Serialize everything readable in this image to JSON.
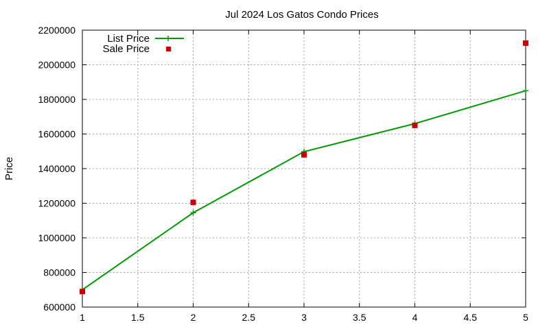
{
  "chart_data": {
    "type": "line",
    "title": "Jul 2024 Los Gatos Condo Prices",
    "xlabel": "",
    "ylabel": "Price",
    "xlim": [
      1,
      5
    ],
    "ylim": [
      600000,
      2200000
    ],
    "x_ticks": [
      1,
      1.5,
      2,
      2.5,
      3,
      3.5,
      4,
      4.5,
      5
    ],
    "y_ticks": [
      600000,
      800000,
      1000000,
      1200000,
      1400000,
      1600000,
      1800000,
      2000000,
      2200000
    ],
    "grid": true,
    "legend_position": "top-left",
    "series": [
      {
        "name": "List Price",
        "style": "line-with-plus-markers",
        "color": "#009900",
        "x": [
          1,
          2,
          3,
          4,
          5
        ],
        "values": [
          700000,
          1145000,
          1498000,
          1660000,
          1850000
        ]
      },
      {
        "name": "Sale Price",
        "style": "square-markers",
        "color": "#cc0000",
        "x": [
          1,
          2,
          3,
          4,
          5
        ],
        "values": [
          690000,
          1205000,
          1480000,
          1650000,
          2125000
        ]
      }
    ]
  }
}
